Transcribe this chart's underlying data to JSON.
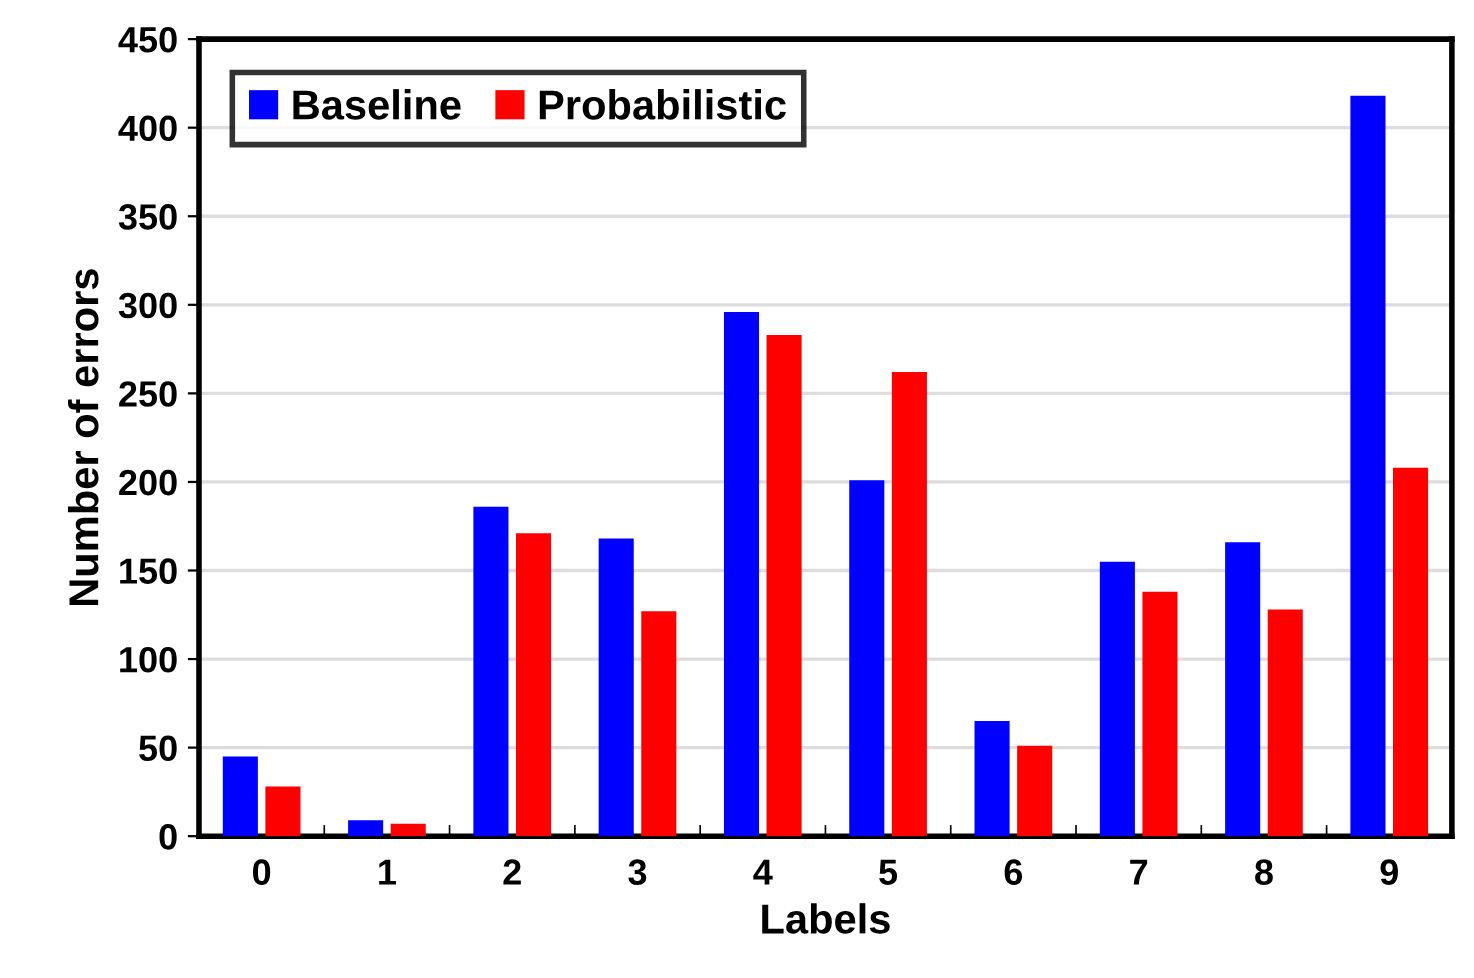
{
  "chart_data": {
    "type": "bar",
    "xlabel": "Labels",
    "ylabel": "Number of errors",
    "categories": [
      "0",
      "1",
      "2",
      "3",
      "4",
      "5",
      "6",
      "7",
      "8",
      "9"
    ],
    "series": [
      {
        "name": "Baseline",
        "color": "#0000ff",
        "values": [
          45,
          9,
          186,
          168,
          296,
          201,
          65,
          155,
          166,
          418
        ]
      },
      {
        "name": "Probabilistic",
        "color": "#ff0000",
        "values": [
          28,
          7,
          171,
          127,
          283,
          262,
          51,
          138,
          128,
          208
        ]
      }
    ],
    "ylim": [
      0,
      450
    ],
    "yticks": [
      0,
      50,
      100,
      150,
      200,
      250,
      300,
      350,
      400,
      450
    ],
    "grid": "y",
    "legend": "top left"
  }
}
